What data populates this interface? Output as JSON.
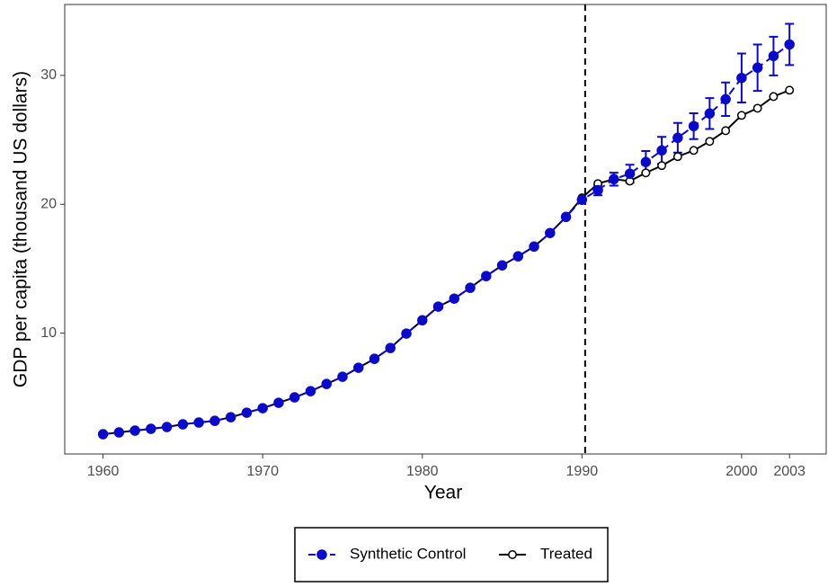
{
  "chart_data": {
    "type": "line",
    "xlabel": "Year",
    "ylabel": "GDP per capita (thousand US dollars)",
    "x": [
      1960,
      1961,
      1962,
      1963,
      1964,
      1965,
      1966,
      1967,
      1968,
      1969,
      1970,
      1971,
      1972,
      1973,
      1974,
      1975,
      1976,
      1977,
      1978,
      1979,
      1980,
      1981,
      1982,
      1983,
      1984,
      1985,
      1986,
      1987,
      1988,
      1989,
      1990,
      1991,
      1992,
      1993,
      1994,
      1995,
      1996,
      1997,
      1998,
      1999,
      2000,
      2001,
      2002,
      2003
    ],
    "series": [
      {
        "name": "Synthetic Control",
        "color": "#0a0ac8",
        "dashed": true,
        "marker": "filled",
        "values": [
          2.16,
          2.3,
          2.44,
          2.58,
          2.72,
          2.93,
          3.07,
          3.2,
          3.48,
          3.83,
          4.18,
          4.6,
          5.02,
          5.5,
          6.06,
          6.62,
          7.32,
          8.01,
          8.85,
          9.97,
          11.0,
          12.06,
          12.68,
          13.52,
          14.43,
          15.26,
          15.96,
          16.72,
          17.77,
          19.02,
          20.35,
          21.1,
          21.95,
          22.37,
          23.28,
          24.18,
          25.16,
          26.06,
          27.04,
          28.15,
          29.8,
          30.6,
          31.5,
          32.4
        ],
        "errors": [
          null,
          null,
          null,
          null,
          null,
          null,
          null,
          null,
          null,
          null,
          null,
          null,
          null,
          null,
          null,
          null,
          null,
          null,
          null,
          null,
          null,
          null,
          null,
          null,
          null,
          null,
          null,
          null,
          null,
          null,
          null,
          0.4,
          0.5,
          0.7,
          0.85,
          1.05,
          1.15,
          1.0,
          1.2,
          1.3,
          1.9,
          1.8,
          1.5,
          1.6
        ]
      },
      {
        "name": "Treated",
        "color": "#000000",
        "dashed": false,
        "marker": "open",
        "values": [
          2.16,
          2.3,
          2.44,
          2.58,
          2.72,
          2.93,
          3.07,
          3.2,
          3.48,
          3.83,
          4.18,
          4.6,
          5.02,
          5.5,
          6.06,
          6.62,
          7.32,
          8.01,
          8.85,
          9.97,
          11.0,
          12.06,
          12.68,
          13.52,
          14.43,
          15.26,
          15.96,
          16.72,
          17.77,
          19.02,
          20.5,
          21.6,
          21.95,
          21.8,
          22.44,
          23.0,
          23.7,
          24.18,
          24.88,
          25.71,
          26.9,
          27.45,
          28.36,
          28.85
        ]
      }
    ],
    "vline": 1990.2,
    "xlim": [
      1957.6,
      2005.3
    ],
    "ylim": [
      0.63,
      35.5
    ],
    "xticks": [
      1960,
      1970,
      1980,
      1990,
      2000,
      2003
    ],
    "yticks": [
      10,
      20,
      30
    ],
    "grid": false,
    "legend": "bottom"
  }
}
